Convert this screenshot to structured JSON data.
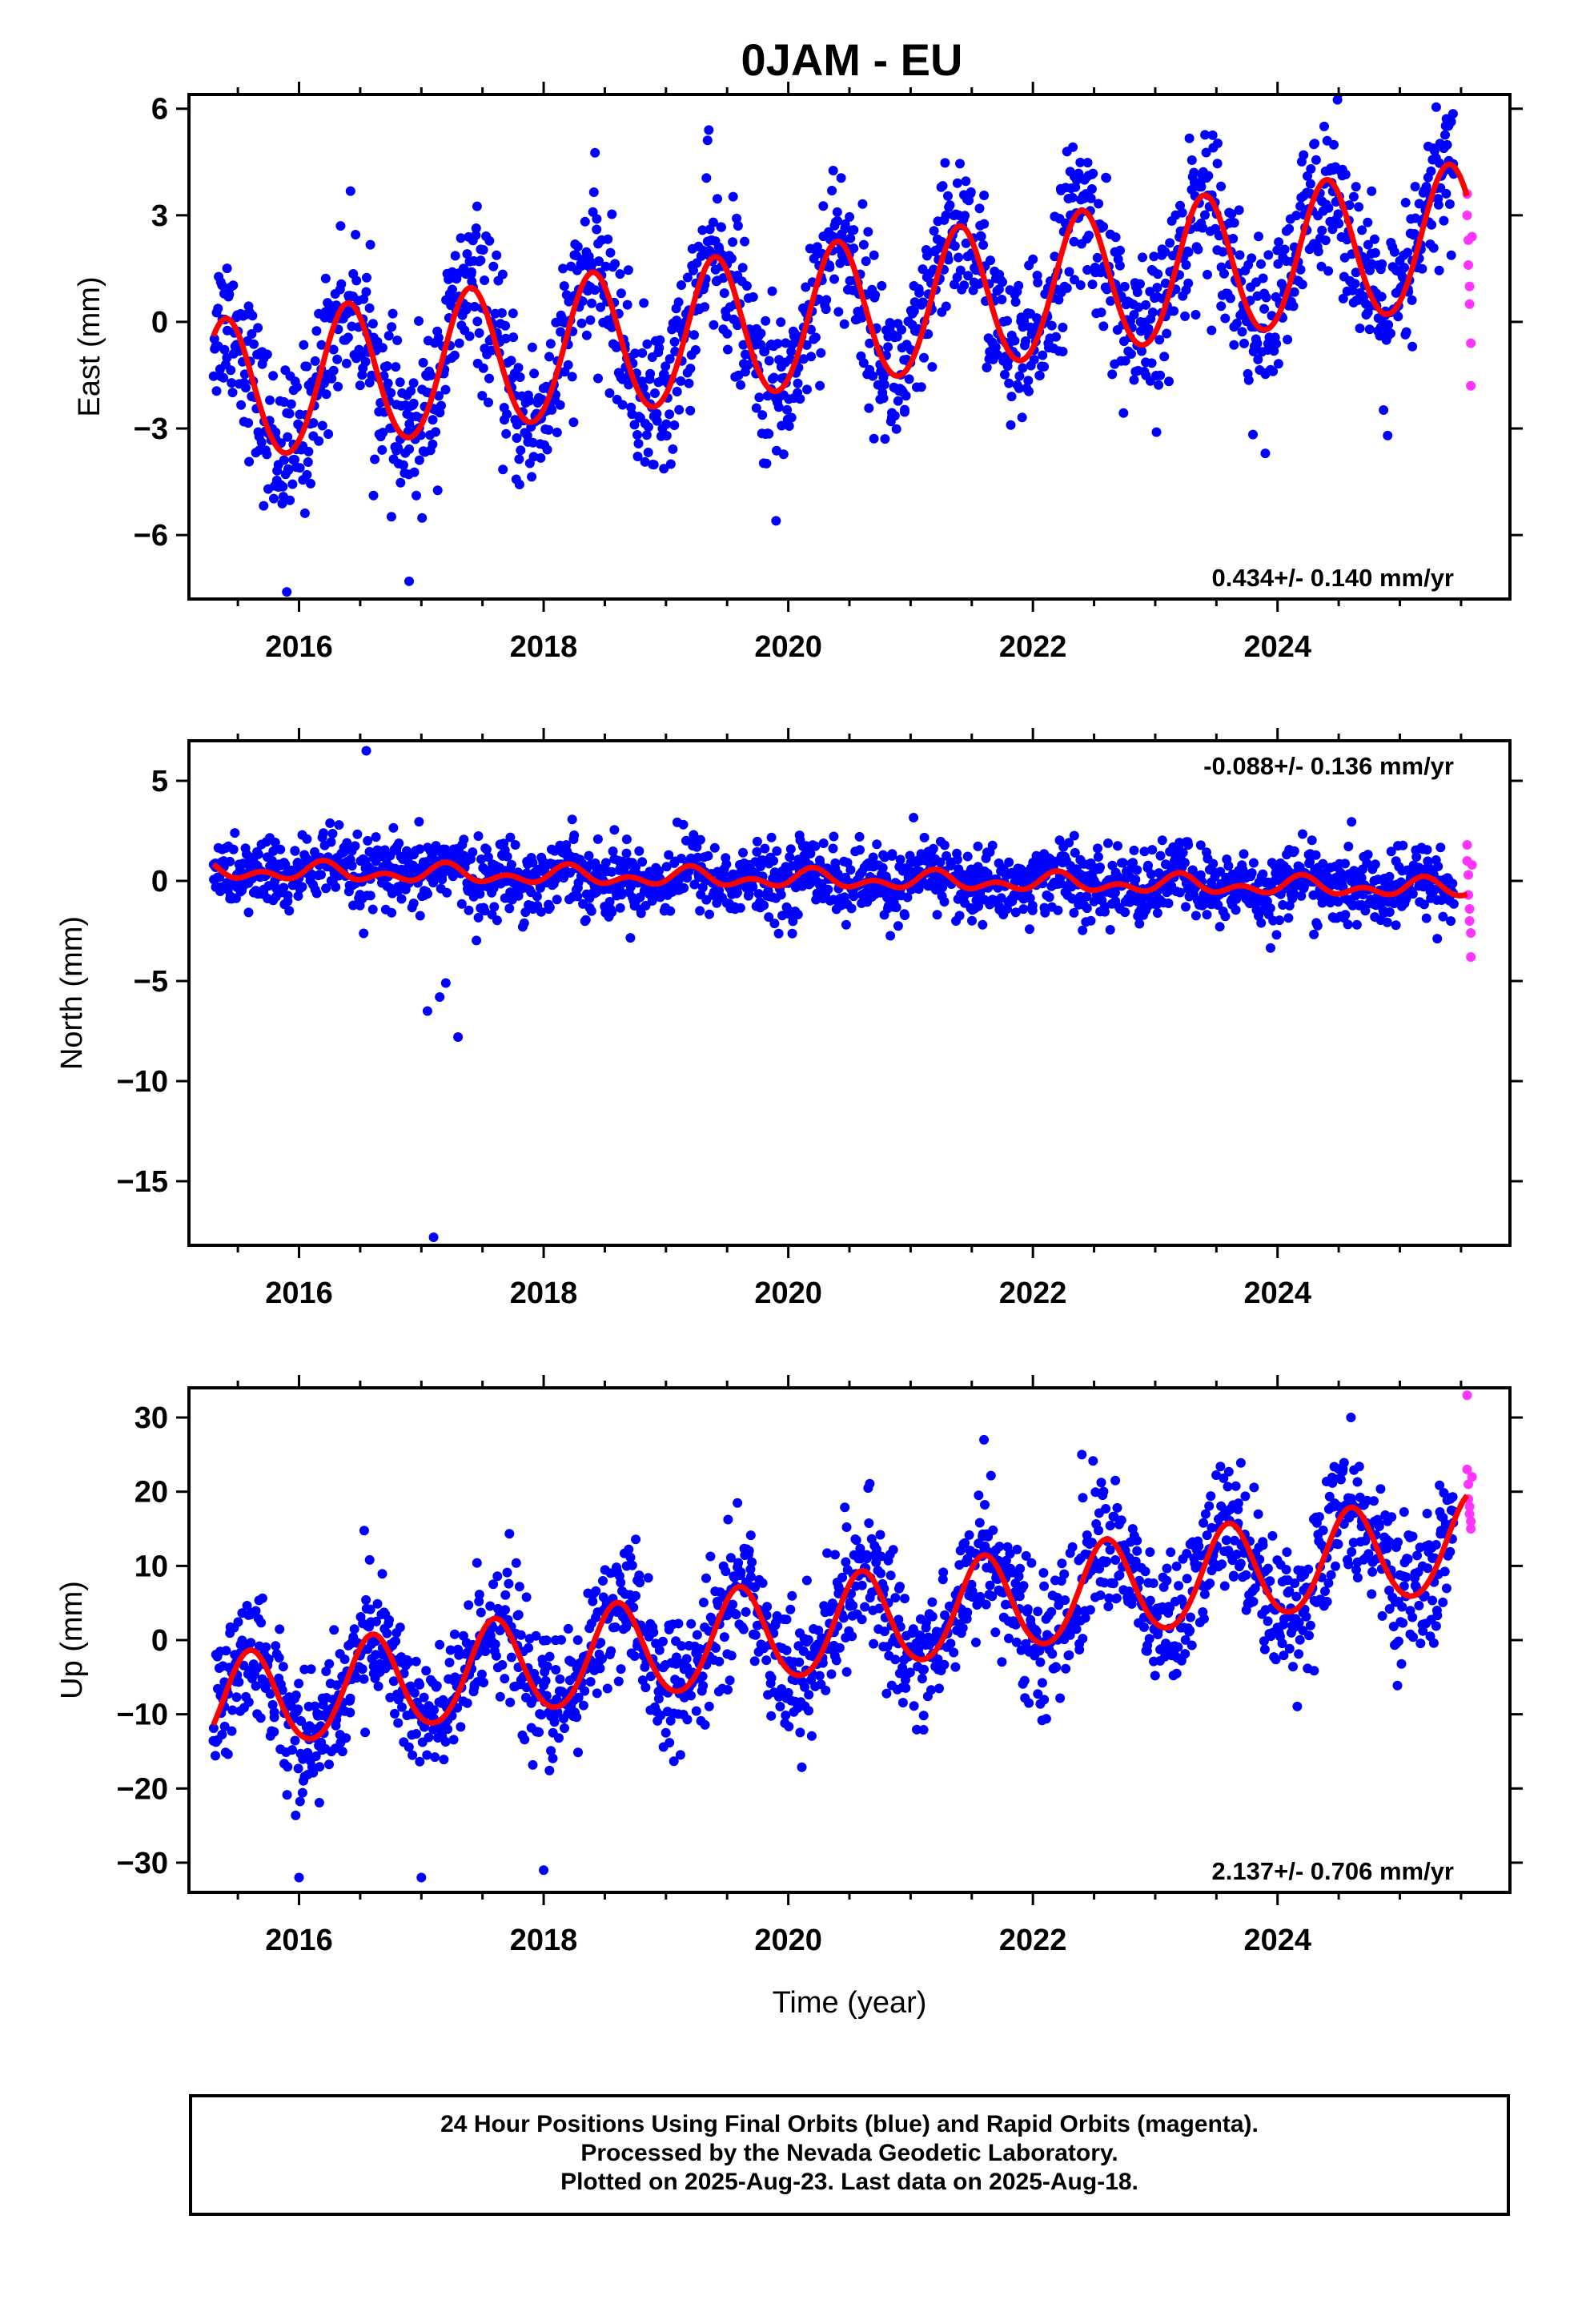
{
  "title": "0JAM - EU",
  "footer": {
    "line1": "24 Hour Positions Using Final Orbits (blue) and Rapid Orbits (magenta).",
    "line2": "Processed by the Nevada Geodetic Laboratory.",
    "line3": "Plotted on 2025-Aug-23. Last data on 2025-Aug-18."
  },
  "colors": {
    "final": "#0000ff",
    "rapid": "#ff33ff",
    "model": "#ff0000",
    "frame": "#000000"
  },
  "chart_data": [
    {
      "type": "scatter",
      "component": "East",
      "ylabel": "East (mm)",
      "xlabel": "",
      "xlim": [
        2015.1,
        2025.9
      ],
      "ylim": [
        -7.8,
        6.4
      ],
      "xticks": [
        2016,
        2018,
        2020,
        2022,
        2024
      ],
      "yticks": [
        -6,
        -3,
        0,
        3,
        6
      ],
      "yticklabels": [
        "−6",
        "−3",
        "0",
        "3",
        "6"
      ],
      "rate_label": "0.434+/- 0.140 mm/yr",
      "rate_position": "bottom-right",
      "model": {
        "start": 2015.3,
        "end": 2025.55,
        "offset": -2.05,
        "rate": 0.434,
        "amplitude": 2.0,
        "peak_phase": 0.4,
        "half_amplitude": 0.1
      },
      "series": [
        {
          "name": "Final Orbits",
          "color": "#0000ff",
          "x_range": [
            2015.3,
            2025.45
          ],
          "scatter": 1.1,
          "point_count": 1800
        },
        {
          "name": "Rapid Orbits",
          "color": "#ff33ff",
          "x": [
            2025.55,
            2025.55,
            2025.56,
            2025.56,
            2025.57,
            2025.57,
            2025.58,
            2025.58,
            2025.59
          ],
          "y": [
            3.6,
            3.0,
            2.3,
            1.6,
            1.0,
            0.5,
            -0.6,
            -1.8,
            2.4
          ]
        }
      ],
      "notable_points": {
        "x": [
          2015.9,
          2016.9,
          2019.9,
          2023.9,
          2024.9,
          2019.35
        ],
        "y": [
          -7.6,
          -7.3,
          -5.6,
          -3.7,
          -3.2,
          5.4
        ]
      }
    },
    {
      "type": "scatter",
      "component": "North",
      "ylabel": "North (mm)",
      "xlabel": "",
      "xlim": [
        2015.1,
        2025.9
      ],
      "ylim": [
        -18.2,
        7.0
      ],
      "xticks": [
        2016,
        2018,
        2020,
        2022,
        2024
      ],
      "yticks": [
        -15,
        -10,
        -5,
        0,
        5
      ],
      "yticklabels": [
        "−15",
        "−10",
        "−5",
        "0",
        "5"
      ],
      "rate_label": "-0.088+/- 0.136 mm/yr",
      "rate_position": "top-right",
      "model": {
        "start": 2015.3,
        "end": 2025.55,
        "offset": 0.5,
        "rate": -0.088,
        "amplitude": 0.3,
        "peak_phase": 0.2,
        "half_amplitude": 0.3
      },
      "series": [
        {
          "name": "Final Orbits",
          "color": "#0000ff",
          "x_range": [
            2015.3,
            2025.45
          ],
          "scatter": 0.9,
          "point_count": 1800
        },
        {
          "name": "Rapid Orbits",
          "color": "#ff33ff",
          "x": [
            2025.55,
            2025.55,
            2025.56,
            2025.56,
            2025.57,
            2025.57,
            2025.58,
            2025.58,
            2025.59
          ],
          "y": [
            1.8,
            1.0,
            0.3,
            -0.7,
            -1.4,
            -2.0,
            -2.6,
            -3.8,
            0.8
          ]
        }
      ],
      "notable_points": {
        "x": [
          2016.55,
          2017.05,
          2017.15,
          2017.3,
          2017.2,
          2017.1
        ],
        "y": [
          6.5,
          -6.5,
          -5.8,
          -7.8,
          -5.1,
          -17.8
        ]
      }
    },
    {
      "type": "scatter",
      "component": "Up",
      "ylabel": "Up (mm)",
      "xlabel": "Time (year)",
      "xlim": [
        2015.1,
        2025.9
      ],
      "ylim": [
        -34,
        34
      ],
      "xticks": [
        2016,
        2018,
        2020,
        2022,
        2024
      ],
      "yticks": [
        -30,
        -20,
        -10,
        0,
        10,
        20,
        30
      ],
      "yticklabels": [
        "−30",
        "−20",
        "−10",
        "0",
        "10",
        "20",
        "30"
      ],
      "rate_label": "2.137+/- 0.706 mm/yr",
      "rate_position": "bottom-right",
      "model": {
        "start": 2015.3,
        "end": 2025.55,
        "offset": -9.0,
        "rate": 2.137,
        "amplitude": 6.5,
        "peak_phase": 0.6,
        "half_amplitude": 0.5
      },
      "series": [
        {
          "name": "Final Orbits",
          "color": "#0000ff",
          "x_range": [
            2015.3,
            2025.45
          ],
          "scatter": 4.5,
          "point_count": 1800
        },
        {
          "name": "Rapid Orbits",
          "color": "#ff33ff",
          "x": [
            2025.55,
            2025.55,
            2025.56,
            2025.56,
            2025.57,
            2025.57,
            2025.58,
            2025.58,
            2025.59
          ],
          "y": [
            33,
            23,
            21,
            19,
            18,
            17,
            16,
            15,
            22
          ]
        }
      ],
      "notable_points": {
        "x": [
          2016.0,
          2017.0,
          2018.0,
          2024.6,
          2021.6,
          2022.4
        ],
        "y": [
          -32,
          -32,
          -31,
          30,
          27,
          25
        ]
      }
    }
  ]
}
